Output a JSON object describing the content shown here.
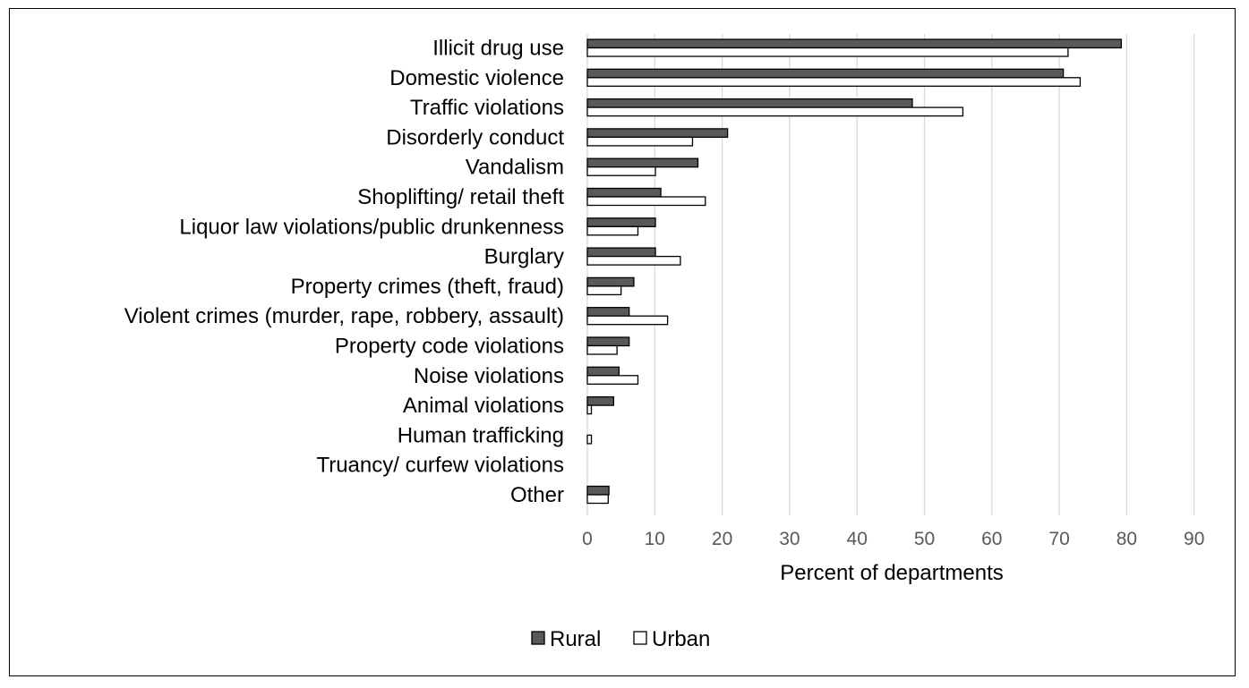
{
  "chart_data": {
    "type": "bar",
    "orientation": "horizontal",
    "categories": [
      "Illicit drug use",
      "Domestic violence",
      "Traffic violations",
      "Disorderly conduct",
      "Vandalism",
      "Shoplifting/ retail theft",
      "Liquor law violations/public drunkenness",
      "Burglary",
      "Property crimes (theft, fraud)",
      "Violent crimes (murder, rape, robbery, assault)",
      "Property code violations",
      "Noise violations",
      "Animal violations",
      "Human trafficking",
      "Truancy/ curfew violations",
      "Other"
    ],
    "series": [
      {
        "name": "Rural",
        "color": "#595959",
        "values": [
          79.2,
          70.6,
          48.2,
          20.8,
          16.4,
          10.9,
          10.1,
          10.1,
          6.9,
          6.2,
          6.2,
          4.7,
          3.9,
          0,
          0,
          3.2
        ]
      },
      {
        "name": "Urban",
        "color": "#ffffff",
        "values": [
          71.3,
          73.1,
          55.7,
          15.6,
          10.1,
          17.5,
          7.5,
          13.8,
          5.0,
          11.9,
          4.4,
          7.5,
          0.6,
          0.6,
          0,
          3.1
        ]
      }
    ],
    "xlabel": "Percent of departments",
    "xlim": [
      0,
      90
    ],
    "xticks": [
      0,
      10,
      20,
      30,
      40,
      50,
      60,
      70,
      80,
      90
    ],
    "grid": "vertical",
    "legend": "bottom"
  }
}
